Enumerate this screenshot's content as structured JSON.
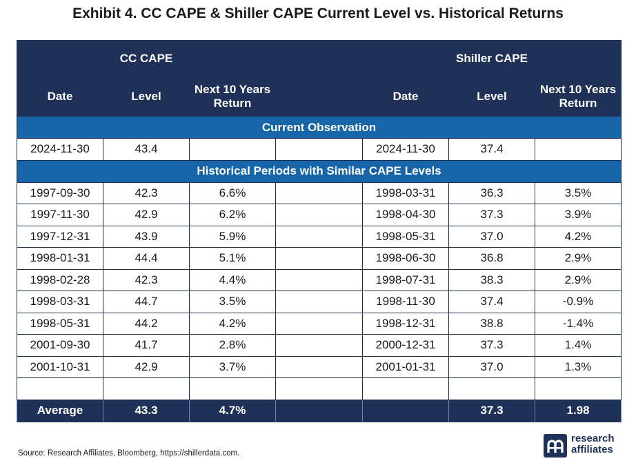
{
  "title": "Exhibit 4. CC CAPE & Shiller CAPE Current Level vs. Historical Returns",
  "header": {
    "cc_group": "CC CAPE",
    "shiller_group": "Shiller CAPE",
    "col_date": "Date",
    "col_level": "Level",
    "col_return": "Next 10 Years Return"
  },
  "sections": {
    "current": "Current Observation",
    "historical": "Historical Periods with Similar CAPE Levels"
  },
  "current": {
    "cc_date": "2024-11-30",
    "cc_level": "43.4",
    "cc_return": "",
    "sh_date": "2024-11-30",
    "sh_level": "37.4",
    "sh_return": ""
  },
  "rows": [
    {
      "cc_date": "1997-09-30",
      "cc_level": "42.3",
      "cc_return": "6.6%",
      "sh_date": "1998-03-31",
      "sh_level": "36.3",
      "sh_return": "3.5%"
    },
    {
      "cc_date": "1997-11-30",
      "cc_level": "42.9",
      "cc_return": "6.2%",
      "sh_date": "1998-04-30",
      "sh_level": "37.3",
      "sh_return": "3.9%"
    },
    {
      "cc_date": "1997-12-31",
      "cc_level": "43.9",
      "cc_return": "5.9%",
      "sh_date": "1998-05-31",
      "sh_level": "37.0",
      "sh_return": "4.2%"
    },
    {
      "cc_date": "1998-01-31",
      "cc_level": "44.4",
      "cc_return": "5.1%",
      "sh_date": "1998-06-30",
      "sh_level": "36.8",
      "sh_return": "2.9%"
    },
    {
      "cc_date": "1998-02-28",
      "cc_level": "42.3",
      "cc_return": "4.4%",
      "sh_date": "1998-07-31",
      "sh_level": "38.3",
      "sh_return": "2.9%"
    },
    {
      "cc_date": "1998-03-31",
      "cc_level": "44.7",
      "cc_return": "3.5%",
      "sh_date": "1998-11-30",
      "sh_level": "37.4",
      "sh_return": "-0.9%"
    },
    {
      "cc_date": "1998-05-31",
      "cc_level": "44.2",
      "cc_return": "4.2%",
      "sh_date": "1998-12-31",
      "sh_level": "38.8",
      "sh_return": "-1.4%"
    },
    {
      "cc_date": "2001-09-30",
      "cc_level": "41.7",
      "cc_return": "2.8%",
      "sh_date": "2000-12-31",
      "sh_level": "37.3",
      "sh_return": "1.4%"
    },
    {
      "cc_date": "2001-10-31",
      "cc_level": "42.9",
      "cc_return": "3.7%",
      "sh_date": "2001-01-31",
      "sh_level": "37.0",
      "sh_return": "1.3%"
    }
  ],
  "average": {
    "label": "Average",
    "cc_level": "43.3",
    "cc_return": "4.7%",
    "sh_level": "37.3",
    "sh_return": "1.98"
  },
  "source": "Source: Research Affiliates, Bloomberg, https://shillerdata.com.",
  "logo": {
    "line1": "research",
    "line2": "affiliates",
    "icon": "research-affiliates-logo-mark",
    "color": "#1f3157"
  },
  "colors": {
    "header_navy": "#1f3157",
    "section_blue": "#1565a8"
  }
}
